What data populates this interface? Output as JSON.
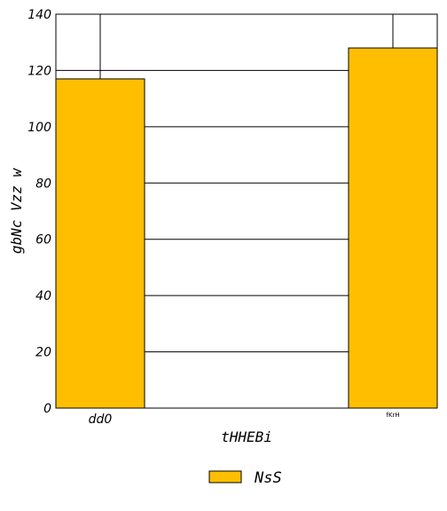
{
  "chart_data": {
    "type": "bar",
    "categories": [
      "dd0",
      "fKrH"
    ],
    "series": [
      {
        "name": "NsS",
        "values": [
          117,
          128
        ],
        "color": "#FFBF00"
      }
    ],
    "title": "",
    "xlabel": "tHHEBi",
    "ylabel": "gbNc Vzz w",
    "ylim": [
      0,
      140
    ],
    "yticks": [
      0,
      20,
      40,
      60,
      80,
      100,
      120,
      140
    ],
    "grid": "horizontal",
    "legend_position": "bottom-center"
  }
}
